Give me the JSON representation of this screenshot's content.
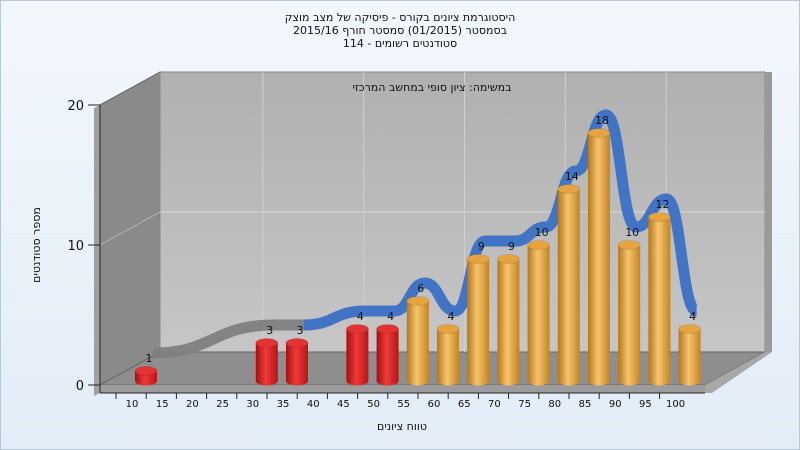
{
  "title_lines": [
    "היסטוגרמת ציונים בקורס - פיסיקה של מצב מוצק",
    "בסמסטר  (01/2015)  סמסטר חורף 2015/16",
    "סטודנטים רשומים - 114"
  ],
  "note": "במשימה: ציון סופי במחשב המרכזי",
  "chart_data": {
    "type": "bar",
    "title": "היסטוגרמת ציונים בקורס - פיסיקה של מצב מוצק",
    "xlabel": "טווח ציונים",
    "ylabel": "מספר סטודנטים",
    "x_ticks": [
      "10",
      "15",
      "20",
      "25",
      "30",
      "35",
      "40",
      "45",
      "50",
      "55",
      "60",
      "65",
      "70",
      "75",
      "80",
      "85",
      "90",
      "95",
      "100"
    ],
    "y_ticks": [
      "0",
      "10",
      "20"
    ],
    "ylim": [
      0,
      20
    ],
    "bars": [
      {
        "x": 10,
        "value": 1,
        "label": "1",
        "group": "fail"
      },
      {
        "x": 30,
        "value": 3,
        "label": "3",
        "group": "fail"
      },
      {
        "x": 35,
        "value": 3,
        "label": "3",
        "group": "fail"
      },
      {
        "x": 45,
        "value": 4,
        "label": "4",
        "group": "fail"
      },
      {
        "x": 50,
        "value": 4,
        "label": "4",
        "group": "fail"
      },
      {
        "x": 55,
        "value": 6,
        "label": "6",
        "group": "pass"
      },
      {
        "x": 60,
        "value": 4,
        "label": "4",
        "group": "pass"
      },
      {
        "x": 65,
        "value": 9,
        "label": "9",
        "group": "pass"
      },
      {
        "x": 70,
        "value": 9,
        "label": "9",
        "group": "pass"
      },
      {
        "x": 75,
        "value": 10,
        "label": "10",
        "group": "pass"
      },
      {
        "x": 80,
        "value": 14,
        "label": "14",
        "group": "pass"
      },
      {
        "x": 85,
        "value": 18,
        "label": "18",
        "group": "pass"
      },
      {
        "x": 90,
        "value": 10,
        "label": "10",
        "group": "pass"
      },
      {
        "x": 95,
        "value": 12,
        "label": "12",
        "group": "pass"
      },
      {
        "x": 100,
        "value": 4,
        "label": "4",
        "group": "pass"
      }
    ],
    "colors": {
      "fail": "#d81e1e",
      "pass": "#e8a84a",
      "trend": "#3a70c4",
      "trend_low": "#808080"
    },
    "grid": true
  }
}
